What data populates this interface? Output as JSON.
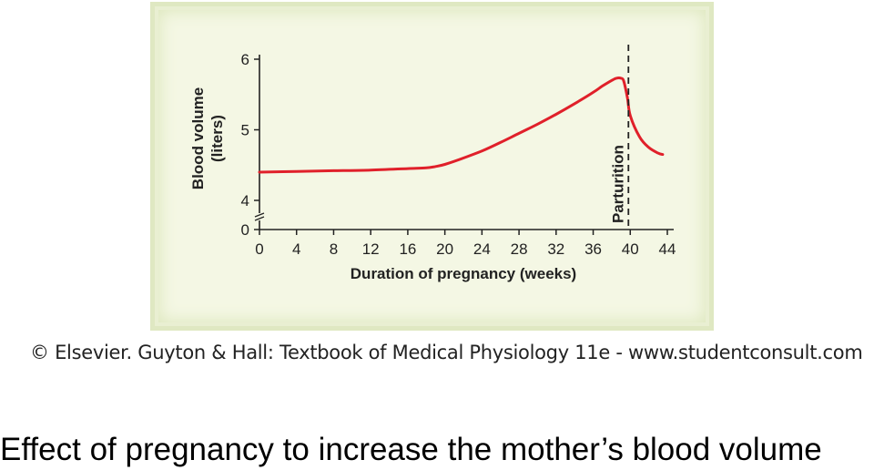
{
  "chart_data": {
    "type": "line",
    "ylabel_line1": "Blood volume",
    "ylabel_line2": "(liters)",
    "xlabel": "Duration of pregnancy (weeks)",
    "x_ticks": [
      0,
      4,
      8,
      12,
      16,
      20,
      24,
      28,
      32,
      36,
      40,
      44
    ],
    "y_ticks": [
      0,
      4,
      5,
      6
    ],
    "xlim": [
      0,
      44
    ],
    "y_axis_break": true,
    "grid": false,
    "series": [
      {
        "color": "#e0202a",
        "x": [
          0,
          4,
          8,
          12,
          16,
          18,
          19,
          20,
          22,
          24,
          26,
          28,
          30,
          32,
          34,
          36,
          37,
          38,
          38.5,
          39,
          39.3,
          39.7,
          40,
          41,
          42,
          43,
          43.5
        ],
        "y": [
          4.4,
          4.41,
          4.42,
          4.43,
          4.45,
          4.46,
          4.48,
          4.51,
          4.6,
          4.7,
          4.82,
          4.95,
          5.08,
          5.22,
          5.37,
          5.53,
          5.62,
          5.7,
          5.73,
          5.73,
          5.69,
          5.45,
          5.2,
          4.9,
          4.75,
          4.67,
          4.65
        ]
      }
    ],
    "annotation": {
      "text": "Parturition",
      "x": 40,
      "line_style": "dashed",
      "color": "#222222"
    }
  },
  "credit": "© Elsevier. Guyton & Hall: Textbook of Medical Physiology 11e - www.studentconsult.com",
  "caption": "Effect of pregnancy to increase the mother’s blood volume"
}
